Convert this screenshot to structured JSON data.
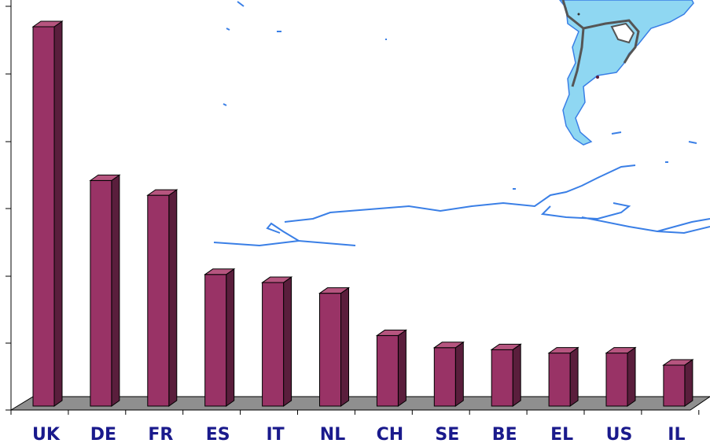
{
  "chart_data": {
    "type": "bar",
    "categories": [
      "UK",
      "DE",
      "FR",
      "ES",
      "IT",
      "NL",
      "CH",
      "SE",
      "BE",
      "EL",
      "US",
      "IL"
    ],
    "values": [
      5.65,
      3.36,
      3.14,
      1.96,
      1.84,
      1.68,
      1.05,
      0.87,
      0.84,
      0.79,
      0.79,
      0.61
    ],
    "ylim": [
      0,
      6
    ],
    "yticks_labeled": false,
    "grid": false,
    "legend": "none",
    "colors": {
      "bar_front": "#993366",
      "bar_side": "#5a1e3c",
      "bar_top": "#b6557f",
      "floor": "#8f8f8f",
      "tick_label": "#1a1a8c",
      "map_ocean_coast": "#3a7fe6",
      "map_land": "#8fd7f2",
      "map_border": "#555555"
    },
    "background": "map-decoration"
  }
}
